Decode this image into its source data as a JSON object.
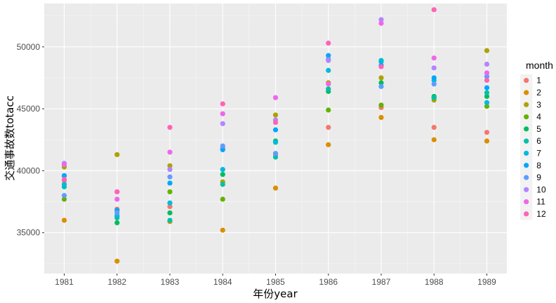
{
  "chart_data": {
    "type": "scatter",
    "title": "",
    "xlabel": "年份year",
    "ylabel": "交通事故数totacc",
    "legend_title": "month",
    "legend_position": "right",
    "grid": true,
    "x_categories": [
      "1981",
      "1982",
      "1983",
      "1984",
      "1985",
      "1986",
      "1987",
      "1988",
      "1989"
    ],
    "ylim": [
      31700,
      53500
    ],
    "y_ticks": [
      35000,
      40000,
      45000,
      50000
    ],
    "y_tick_labels": [
      "35000",
      "40000",
      "45000",
      "50000"
    ],
    "series": [
      {
        "name": "1",
        "color": "#F8766D",
        "values": [
          39200,
          36900,
          37100,
          41800,
          41300,
          43500,
          45100,
          43500,
          43100
        ]
      },
      {
        "name": "2",
        "color": "#DB8E00",
        "values": [
          36000,
          32700,
          35900,
          35200,
          38600,
          42100,
          44300,
          42500,
          42400
        ]
      },
      {
        "name": "3",
        "color": "#AEA200",
        "values": [
          40300,
          41300,
          40400,
          39100,
          44500,
          47100,
          47500,
          45700,
          49700
        ]
      },
      {
        "name": "4",
        "color": "#64B200",
        "values": [
          37700,
          36300,
          38300,
          37700,
          42300,
          44900,
          45300,
          45900,
          45200
        ]
      },
      {
        "name": "5",
        "color": "#00BD5C",
        "values": [
          39600,
          35800,
          36600,
          39700,
          42400,
          46400,
          47100,
          46000,
          46000
        ]
      },
      {
        "name": "6",
        "color": "#00C1A7",
        "values": [
          38700,
          36200,
          36000,
          38900,
          41100,
          46600,
          48800,
          45900,
          46300
        ]
      },
      {
        "name": "7",
        "color": "#00BADE",
        "values": [
          38900,
          36400,
          37400,
          40100,
          42300,
          48100,
          48900,
          47300,
          45500
        ]
      },
      {
        "name": "8",
        "color": "#00A6FF",
        "values": [
          39600,
          36800,
          39000,
          41700,
          43300,
          49300,
          48500,
          47500,
          46700
        ]
      },
      {
        "name": "9",
        "color": "#619CFF",
        "values": [
          38000,
          36600,
          39500,
          42000,
          41400,
          49000,
          46800,
          47000,
          47600
        ]
      },
      {
        "name": "10",
        "color": "#B385FF",
        "values": [
          40600,
          38300,
          40100,
          43800,
          44100,
          48900,
          52200,
          48300,
          48600
        ]
      },
      {
        "name": "11",
        "color": "#EF67EB",
        "values": [
          40500,
          37700,
          41500,
          44600,
          45900,
          47000,
          51900,
          49100,
          47900
        ]
      },
      {
        "name": "12",
        "color": "#FF63B6",
        "values": [
          39300,
          38300,
          43500,
          45400,
          43900,
          50300,
          48400,
          53000,
          47300
        ]
      }
    ]
  }
}
